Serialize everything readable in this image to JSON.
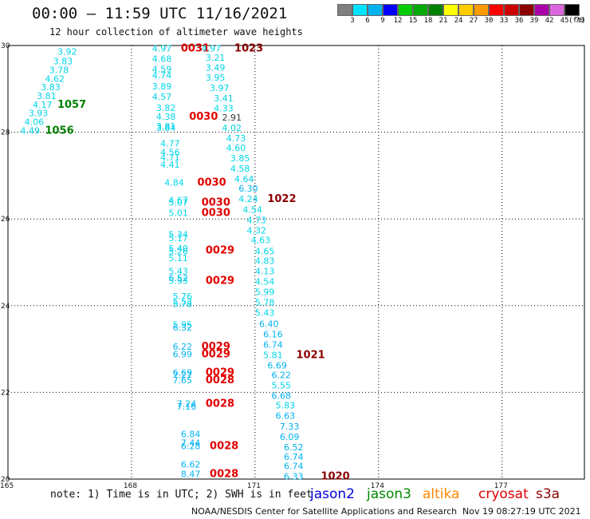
{
  "header": {
    "title": "00:00 – 11:59 UTC 11/16/2021",
    "subtitle": "12 hour collection of altimeter wave heights"
  },
  "color_scale": {
    "unit": "(ft)",
    "bins": [
      {
        "label": "3",
        "color": "#7f7f7f"
      },
      {
        "label": "6",
        "color": "#00e5ff"
      },
      {
        "label": "9",
        "color": "#00b3f0"
      },
      {
        "label": "12",
        "color": "#0000ff"
      },
      {
        "label": "15",
        "color": "#00cc00"
      },
      {
        "label": "18",
        "color": "#00aa00"
      },
      {
        "label": "21",
        "color": "#008000"
      },
      {
        "label": "24",
        "color": "#ffff00"
      },
      {
        "label": "27",
        "color": "#ffcc00"
      },
      {
        "label": "30",
        "color": "#ff9900"
      },
      {
        "label": "33",
        "color": "#ff0000"
      },
      {
        "label": "36",
        "color": "#cc0000"
      },
      {
        "label": "39",
        "color": "#8b0000"
      },
      {
        "label": "42",
        "color": "#aa00aa"
      },
      {
        "label": "45",
        "color": "#dd66dd"
      },
      {
        "label": "70",
        "color": "#000000"
      }
    ]
  },
  "chart_data": {
    "type": "scatter",
    "x_axis": {
      "range": [
        165,
        179
      ],
      "ticks": [
        "165",
        "168",
        "171",
        "174",
        "177"
      ]
    },
    "y_axis": {
      "range": [
        20,
        30
      ],
      "ticks": [
        "20",
        "22",
        "24",
        "26",
        "28",
        "30"
      ]
    },
    "grid": true,
    "points": [
      {
        "lon": 166.2,
        "lat": 29.86,
        "value": "3.92",
        "color": "#00d5e8"
      },
      {
        "lon": 166.1,
        "lat": 29.64,
        "value": "3.83",
        "color": "#00d5e8"
      },
      {
        "lon": 166.0,
        "lat": 29.44,
        "value": "3.78",
        "color": "#00d5e8"
      },
      {
        "lon": 165.9,
        "lat": 29.24,
        "value": "4.62",
        "color": "#00d5e8"
      },
      {
        "lon": 165.8,
        "lat": 29.04,
        "value": "3.83",
        "color": "#00d5e8"
      },
      {
        "lon": 165.7,
        "lat": 28.84,
        "value": "3.81",
        "color": "#00d5e8"
      },
      {
        "lon": 165.6,
        "lat": 28.64,
        "value": "4.17",
        "color": "#00d5e8"
      },
      {
        "lon": 165.5,
        "lat": 28.44,
        "value": "3.93",
        "color": "#00d5e8"
      },
      {
        "lon": 165.4,
        "lat": 28.24,
        "value": "4.06",
        "color": "#00d5e8"
      },
      {
        "lon": 165.3,
        "lat": 28.04,
        "value": "4.49",
        "color": "#00d5e8"
      },
      {
        "lon": 166.2,
        "lat": 28.64,
        "value": "1057",
        "color": "#008000",
        "bold": true
      },
      {
        "lon": 165.9,
        "lat": 28.04,
        "value": "1056",
        "color": "#008000",
        "bold": true
      },
      {
        "lon": 168.5,
        "lat": 29.94,
        "value": "4.97",
        "color": "#00d5e8"
      },
      {
        "lon": 169.2,
        "lat": 29.94,
        "value": "0031",
        "color": "#e00000",
        "bold": true
      },
      {
        "lon": 169.7,
        "lat": 29.94,
        "value": "4.97",
        "color": "#00d5e8"
      },
      {
        "lon": 170.5,
        "lat": 29.94,
        "value": "1023",
        "color": "#8b0000",
        "bold": true
      },
      {
        "lon": 168.5,
        "lat": 29.7,
        "value": "4.68",
        "color": "#00d5e8"
      },
      {
        "lon": 169.8,
        "lat": 29.72,
        "value": "3.21",
        "color": "#00d5e8"
      },
      {
        "lon": 168.5,
        "lat": 29.46,
        "value": "4.59",
        "color": "#00d5e8"
      },
      {
        "lon": 169.8,
        "lat": 29.49,
        "value": "3.49",
        "color": "#00d5e8"
      },
      {
        "lon": 168.5,
        "lat": 29.32,
        "value": "4.74",
        "color": "#00d5e8"
      },
      {
        "lon": 169.8,
        "lat": 29.26,
        "value": "3.95",
        "color": "#00d5e8"
      },
      {
        "lon": 168.5,
        "lat": 29.06,
        "value": "3.89",
        "color": "#00d5e8"
      },
      {
        "lon": 169.9,
        "lat": 29.02,
        "value": "3.97",
        "color": "#00d5e8"
      },
      {
        "lon": 168.5,
        "lat": 28.82,
        "value": "4.57",
        "color": "#00d5e8"
      },
      {
        "lon": 170.0,
        "lat": 28.78,
        "value": "3.41",
        "color": "#00d5e8"
      },
      {
        "lon": 168.6,
        "lat": 28.56,
        "value": "3.82",
        "color": "#00d5e8"
      },
      {
        "lon": 170.0,
        "lat": 28.55,
        "value": "4.33",
        "color": "#00d5e8"
      },
      {
        "lon": 168.6,
        "lat": 28.36,
        "value": "4.38",
        "color": "#00d5e8"
      },
      {
        "lon": 169.4,
        "lat": 28.36,
        "value": "0030",
        "color": "#e00000",
        "bold": true
      },
      {
        "lon": 170.2,
        "lat": 28.34,
        "value": "2.91",
        "color": "#333333"
      },
      {
        "lon": 168.6,
        "lat": 28.14,
        "value": "3.81",
        "color": "#00d5e8"
      },
      {
        "lon": 168.6,
        "lat": 28.1,
        "value": "3.84",
        "color": "#00d5e8"
      },
      {
        "lon": 170.2,
        "lat": 28.1,
        "value": "4.02",
        "color": "#00d5e8"
      },
      {
        "lon": 170.3,
        "lat": 27.86,
        "value": "4.73",
        "color": "#00d5e8"
      },
      {
        "lon": 168.7,
        "lat": 27.74,
        "value": "4.77",
        "color": "#00d5e8"
      },
      {
        "lon": 170.3,
        "lat": 27.64,
        "value": "4.60",
        "color": "#00d5e8"
      },
      {
        "lon": 168.7,
        "lat": 27.54,
        "value": "4.56",
        "color": "#00d5e8"
      },
      {
        "lon": 168.7,
        "lat": 27.42,
        "value": "4.71",
        "color": "#00d5e8"
      },
      {
        "lon": 170.4,
        "lat": 27.4,
        "value": "3.85",
        "color": "#00d5e8"
      },
      {
        "lon": 168.7,
        "lat": 27.26,
        "value": "4.41",
        "color": "#00d5e8"
      },
      {
        "lon": 170.4,
        "lat": 27.16,
        "value": "4.58",
        "color": "#00d5e8"
      },
      {
        "lon": 170.5,
        "lat": 26.92,
        "value": "4.64",
        "color": "#00d5e8"
      },
      {
        "lon": 168.8,
        "lat": 26.84,
        "value": "4.84",
        "color": "#00d5e8"
      },
      {
        "lon": 169.6,
        "lat": 26.84,
        "value": "0030",
        "color": "#e00000",
        "bold": true
      },
      {
        "lon": 170.6,
        "lat": 26.7,
        "value": "6.30",
        "color": "#00b3f0"
      },
      {
        "lon": 168.9,
        "lat": 26.44,
        "value": "4.67",
        "color": "#00d5e8"
      },
      {
        "lon": 168.9,
        "lat": 26.38,
        "value": "5.07",
        "color": "#00d5e8"
      },
      {
        "lon": 169.7,
        "lat": 26.38,
        "value": "0030",
        "color": "#e00000",
        "bold": true
      },
      {
        "lon": 170.6,
        "lat": 26.46,
        "value": "4.24",
        "color": "#00d5e8"
      },
      {
        "lon": 171.3,
        "lat": 26.46,
        "value": "1022",
        "color": "#8b0000",
        "bold": true
      },
      {
        "lon": 168.9,
        "lat": 26.14,
        "value": "5.01",
        "color": "#00d5e8"
      },
      {
        "lon": 169.7,
        "lat": 26.14,
        "value": "0030",
        "color": "#e00000",
        "bold": true
      },
      {
        "lon": 170.7,
        "lat": 26.22,
        "value": "4.54",
        "color": "#00d5e8"
      },
      {
        "lon": 170.8,
        "lat": 25.98,
        "value": "4.73",
        "color": "#00d5e8"
      },
      {
        "lon": 170.8,
        "lat": 25.74,
        "value": "4.32",
        "color": "#00d5e8"
      },
      {
        "lon": 168.9,
        "lat": 25.64,
        "value": "5.34",
        "color": "#00d5e8"
      },
      {
        "lon": 168.9,
        "lat": 25.56,
        "value": "5.17",
        "color": "#00d5e8"
      },
      {
        "lon": 170.9,
        "lat": 25.52,
        "value": "4.63",
        "color": "#00d5e8"
      },
      {
        "lon": 168.9,
        "lat": 25.32,
        "value": "5.40",
        "color": "#00d5e8"
      },
      {
        "lon": 168.9,
        "lat": 25.26,
        "value": "5.26",
        "color": "#00d5e8"
      },
      {
        "lon": 169.8,
        "lat": 25.28,
        "value": "0029",
        "color": "#e00000",
        "bold": true
      },
      {
        "lon": 171.0,
        "lat": 25.26,
        "value": "4.65",
        "color": "#00d5e8"
      },
      {
        "lon": 168.9,
        "lat": 25.1,
        "value": "5.11",
        "color": "#00d5e8"
      },
      {
        "lon": 171.0,
        "lat": 25.04,
        "value": "4.83",
        "color": "#00d5e8"
      },
      {
        "lon": 168.9,
        "lat": 24.8,
        "value": "5.43",
        "color": "#00d5e8"
      },
      {
        "lon": 171.0,
        "lat": 24.8,
        "value": "4.13",
        "color": "#00d5e8"
      },
      {
        "lon": 168.9,
        "lat": 24.64,
        "value": "6.52",
        "color": "#00b3f0"
      },
      {
        "lon": 168.9,
        "lat": 24.58,
        "value": "5.93",
        "color": "#00d5e8"
      },
      {
        "lon": 169.8,
        "lat": 24.58,
        "value": "0029",
        "color": "#e00000",
        "bold": true
      },
      {
        "lon": 171.0,
        "lat": 24.56,
        "value": "4.54",
        "color": "#00d5e8"
      },
      {
        "lon": 171.0,
        "lat": 24.32,
        "value": "5.99",
        "color": "#00d5e8"
      },
      {
        "lon": 169.0,
        "lat": 24.22,
        "value": "5.76",
        "color": "#00d5e8"
      },
      {
        "lon": 169.0,
        "lat": 24.1,
        "value": "5.53",
        "color": "#00d5e8"
      },
      {
        "lon": 171.0,
        "lat": 24.08,
        "value": "5.78",
        "color": "#00d5e8"
      },
      {
        "lon": 169.0,
        "lat": 24.04,
        "value": "5.78",
        "color": "#00d5e8"
      },
      {
        "lon": 171.0,
        "lat": 23.84,
        "value": "5.43",
        "color": "#00d5e8"
      },
      {
        "lon": 169.0,
        "lat": 23.56,
        "value": "5.95",
        "color": "#00d5e8"
      },
      {
        "lon": 169.0,
        "lat": 23.5,
        "value": "6.32",
        "color": "#00b3f0"
      },
      {
        "lon": 171.1,
        "lat": 23.58,
        "value": "6.40",
        "color": "#00b3f0"
      },
      {
        "lon": 171.2,
        "lat": 23.34,
        "value": "6.16",
        "color": "#00b3f0"
      },
      {
        "lon": 169.0,
        "lat": 23.06,
        "value": "6.22",
        "color": "#00b3f0"
      },
      {
        "lon": 169.7,
        "lat": 23.06,
        "value": "0029",
        "color": "#e00000",
        "bold": true
      },
      {
        "lon": 171.2,
        "lat": 23.1,
        "value": "6.74",
        "color": "#00b3f0"
      },
      {
        "lon": 169.0,
        "lat": 22.88,
        "value": "6.99",
        "color": "#00b3f0"
      },
      {
        "lon": 169.7,
        "lat": 22.88,
        "value": "0029",
        "color": "#e00000",
        "bold": true
      },
      {
        "lon": 171.2,
        "lat": 22.86,
        "value": "5.81",
        "color": "#00d5e8"
      },
      {
        "lon": 172.0,
        "lat": 22.86,
        "value": "1021",
        "color": "#8b0000",
        "bold": true
      },
      {
        "lon": 171.3,
        "lat": 22.62,
        "value": "6.69",
        "color": "#00b3f0"
      },
      {
        "lon": 169.0,
        "lat": 22.46,
        "value": "6.69",
        "color": "#00b3f0"
      },
      {
        "lon": 169.8,
        "lat": 22.46,
        "value": "0029",
        "color": "#e00000",
        "bold": true
      },
      {
        "lon": 169.0,
        "lat": 22.4,
        "value": "7.27",
        "color": "#00b3f0"
      },
      {
        "lon": 171.4,
        "lat": 22.4,
        "value": "6.22",
        "color": "#00b3f0"
      },
      {
        "lon": 169.0,
        "lat": 22.28,
        "value": "7.65",
        "color": "#00b3f0"
      },
      {
        "lon": 169.8,
        "lat": 22.28,
        "value": "0028",
        "color": "#e00000",
        "bold": true
      },
      {
        "lon": 171.4,
        "lat": 22.16,
        "value": "5.55",
        "color": "#00d5e8"
      },
      {
        "lon": 171.4,
        "lat": 21.92,
        "value": "6.68",
        "color": "#00b3f0"
      },
      {
        "lon": 169.1,
        "lat": 21.74,
        "value": "7.24",
        "color": "#00b3f0"
      },
      {
        "lon": 169.1,
        "lat": 21.68,
        "value": "7.16",
        "color": "#00b3f0"
      },
      {
        "lon": 169.8,
        "lat": 21.74,
        "value": "0028",
        "color": "#e00000",
        "bold": true
      },
      {
        "lon": 171.5,
        "lat": 21.7,
        "value": "5.83",
        "color": "#00d5e8"
      },
      {
        "lon": 171.5,
        "lat": 21.46,
        "value": "6.63",
        "color": "#00b3f0"
      },
      {
        "lon": 171.6,
        "lat": 21.22,
        "value": "7.33",
        "color": "#00b3f0"
      },
      {
        "lon": 169.2,
        "lat": 21.04,
        "value": "6.84",
        "color": "#00b3f0"
      },
      {
        "lon": 171.6,
        "lat": 20.98,
        "value": "6.09",
        "color": "#00b3f0"
      },
      {
        "lon": 169.2,
        "lat": 20.84,
        "value": "7.44",
        "color": "#00b3f0"
      },
      {
        "lon": 169.2,
        "lat": 20.76,
        "value": "6.28",
        "color": "#00b3f0"
      },
      {
        "lon": 169.9,
        "lat": 20.76,
        "value": "0028",
        "color": "#e00000",
        "bold": true
      },
      {
        "lon": 171.7,
        "lat": 20.74,
        "value": "6.52",
        "color": "#00b3f0"
      },
      {
        "lon": 171.7,
        "lat": 20.52,
        "value": "6.74",
        "color": "#00b3f0"
      },
      {
        "lon": 169.2,
        "lat": 20.34,
        "value": "6.62",
        "color": "#00b3f0"
      },
      {
        "lon": 171.7,
        "lat": 20.3,
        "value": "6.74",
        "color": "#00b3f0"
      },
      {
        "lon": 169.2,
        "lat": 20.12,
        "value": "8.47",
        "color": "#00b3f0"
      },
      {
        "lon": 169.9,
        "lat": 20.12,
        "value": "0028",
        "color": "#e00000",
        "bold": true
      },
      {
        "lon": 171.7,
        "lat": 20.06,
        "value": "6.33",
        "color": "#00b3f0"
      },
      {
        "lon": 172.6,
        "lat": 20.06,
        "value": "1020",
        "color": "#8b0000",
        "bold": true
      }
    ]
  },
  "footer": {
    "note": "note: 1) Time is in UTC; 2) SWH is in feet",
    "legend": [
      {
        "label": "jason2",
        "color": "#0000dd"
      },
      {
        "label": "jason3",
        "color": "#008800"
      },
      {
        "label": "altika",
        "color": "#ff8800"
      },
      {
        "label": "cryosat",
        "color": "#dd0000"
      },
      {
        "label": "s3a",
        "color": "#8b0000"
      }
    ],
    "credit": "NOAA/NESDIS Center for Satellite Applications and Research",
    "timestamp": "Nov 19 08:27:19 UTC 2021"
  }
}
